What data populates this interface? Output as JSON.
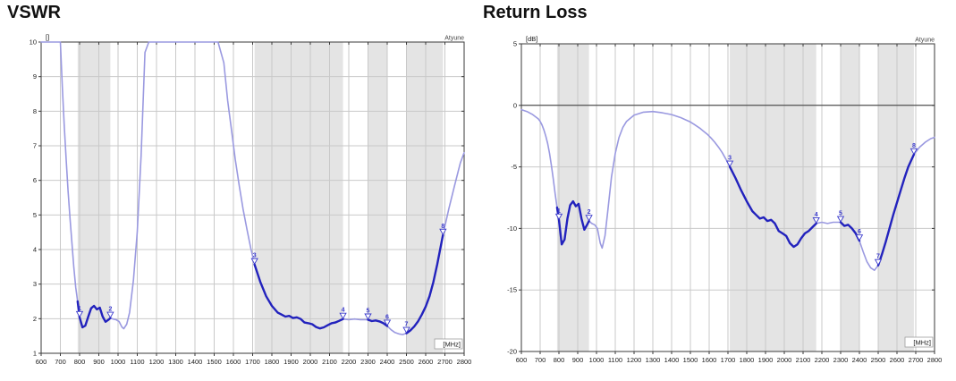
{
  "colors": {
    "curve_bold": "#2222bd",
    "curve_light": "#9a99e0",
    "band_fill": "#e4e4e4",
    "grid": "#c9c9c9",
    "frame": "#3a3a3a",
    "zero_line": "#333333",
    "marker": "#3a3acc",
    "text": "#1a1a1a",
    "watermark": "#444444"
  },
  "chart_data": [
    {
      "type": "line",
      "title": "VSWR",
      "unit_label": "[]",
      "watermark": "Atyune",
      "xlabel": "[MHz]",
      "x_range": [
        600,
        2800
      ],
      "x_tick_step": 100,
      "ylim": [
        1,
        10
      ],
      "y_tick_step": 1,
      "grid": true,
      "legend": "none",
      "bands_mhz": [
        [
          790,
          960
        ],
        [
          1710,
          2170
        ],
        [
          2300,
          2400
        ],
        [
          2500,
          2690
        ]
      ],
      "x": [
        600,
        630,
        660,
        690,
        700,
        710,
        720,
        730,
        740,
        750,
        760,
        770,
        780,
        790,
        800,
        815,
        830,
        845,
        860,
        875,
        890,
        905,
        920,
        935,
        950,
        960,
        975,
        990,
        1005,
        1020,
        1030,
        1045,
        1060,
        1080,
        1100,
        1120,
        1140,
        1160,
        1200,
        1250,
        1300,
        1350,
        1400,
        1450,
        1500,
        1520,
        1550,
        1570,
        1590,
        1610,
        1630,
        1650,
        1670,
        1690,
        1710,
        1740,
        1770,
        1800,
        1830,
        1850,
        1870,
        1890,
        1910,
        1930,
        1950,
        1970,
        1990,
        2010,
        2030,
        2050,
        2070,
        2090,
        2110,
        2130,
        2150,
        2170,
        2200,
        2230,
        2260,
        2300,
        2320,
        2340,
        2360,
        2380,
        2400,
        2420,
        2440,
        2460,
        2480,
        2500,
        2520,
        2540,
        2560,
        2580,
        2600,
        2620,
        2640,
        2660,
        2690,
        2720,
        2750,
        2780,
        2800
      ],
      "values": [
        11,
        11,
        11,
        11,
        10.2,
        8.7,
        7.6,
        6.6,
        5.7,
        4.9,
        4.2,
        3.5,
        2.9,
        2.5,
        2.04,
        1.75,
        1.8,
        2.06,
        2.3,
        2.37,
        2.27,
        2.32,
        2.06,
        1.91,
        1.97,
        2.02,
        1.99,
        1.97,
        1.92,
        1.76,
        1.71,
        1.84,
        2.18,
        3.11,
        4.52,
        6.72,
        9.7,
        11,
        11,
        11,
        11,
        11,
        11,
        11,
        11,
        11,
        9.4,
        8.3,
        7.45,
        6.6,
        5.85,
        5.17,
        4.59,
        4.04,
        3.57,
        3.06,
        2.65,
        2.37,
        2.18,
        2.12,
        2.06,
        2.08,
        2.02,
        2.04,
        1.99,
        1.89,
        1.87,
        1.84,
        1.76,
        1.72,
        1.75,
        1.81,
        1.87,
        1.89,
        1.94,
        1.99,
        1.97,
        1.99,
        1.97,
        1.97,
        1.93,
        1.95,
        1.92,
        1.87,
        1.79,
        1.68,
        1.6,
        1.56,
        1.54,
        1.58,
        1.66,
        1.77,
        1.92,
        2.12,
        2.35,
        2.65,
        3.06,
        3.57,
        4.42,
        5.17,
        5.85,
        6.5,
        6.8
      ],
      "markers": [
        {
          "label": "1",
          "mhz": 800,
          "value": 2.04
        },
        {
          "label": "2",
          "mhz": 960,
          "value": 2.02
        },
        {
          "label": "3",
          "mhz": 1710,
          "value": 3.57
        },
        {
          "label": "4",
          "mhz": 2170,
          "value": 1.99
        },
        {
          "label": "5",
          "mhz": 2300,
          "value": 1.97
        },
        {
          "label": "6",
          "mhz": 2400,
          "value": 1.79
        },
        {
          "label": "7",
          "mhz": 2500,
          "value": 1.58
        },
        {
          "label": "8",
          "mhz": 2690,
          "value": 4.42
        }
      ]
    },
    {
      "type": "line",
      "title": "Return Loss",
      "unit_label": "[dB]",
      "watermark": "Atyune",
      "xlabel": "[MHz]",
      "x_range": [
        600,
        2800
      ],
      "x_tick_step": 100,
      "ylim": [
        -20,
        5
      ],
      "y_tick_step": 5,
      "zero_line": 0,
      "grid": true,
      "legend": "none",
      "bands_mhz": [
        [
          790,
          960
        ],
        [
          1710,
          2170
        ],
        [
          2300,
          2400
        ],
        [
          2500,
          2690
        ]
      ],
      "x": [
        600,
        630,
        660,
        690,
        700,
        710,
        720,
        730,
        740,
        750,
        760,
        770,
        780,
        790,
        800,
        815,
        830,
        845,
        860,
        875,
        890,
        905,
        920,
        935,
        950,
        960,
        975,
        990,
        1005,
        1020,
        1030,
        1045,
        1060,
        1080,
        1100,
        1120,
        1140,
        1160,
        1200,
        1250,
        1300,
        1350,
        1400,
        1450,
        1500,
        1520,
        1550,
        1570,
        1590,
        1610,
        1630,
        1650,
        1670,
        1690,
        1710,
        1740,
        1770,
        1800,
        1830,
        1850,
        1870,
        1890,
        1910,
        1930,
        1950,
        1970,
        1990,
        2010,
        2030,
        2050,
        2070,
        2090,
        2110,
        2130,
        2150,
        2170,
        2200,
        2230,
        2260,
        2300,
        2320,
        2340,
        2360,
        2380,
        2400,
        2420,
        2440,
        2460,
        2480,
        2500,
        2520,
        2540,
        2560,
        2580,
        2600,
        2620,
        2640,
        2660,
        2690,
        2720,
        2750,
        2780,
        2800
      ],
      "values": [
        -0.35,
        -0.5,
        -0.75,
        -1.1,
        -1.3,
        -1.6,
        -2,
        -2.5,
        -3.1,
        -3.9,
        -4.9,
        -6,
        -7.2,
        -8.3,
        -9.3,
        -11.3,
        -10.9,
        -9.2,
        -8.1,
        -7.8,
        -8.2,
        -8,
        -9.2,
        -10.1,
        -9.7,
        -9.4,
        -9.6,
        -9.7,
        -10,
        -11.2,
        -11.6,
        -10.6,
        -8.6,
        -5.8,
        -3.9,
        -2.6,
        -1.8,
        -1.3,
        -0.8,
        -0.55,
        -0.5,
        -0.6,
        -0.75,
        -1,
        -1.35,
        -1.55,
        -1.85,
        -2.1,
        -2.35,
        -2.65,
        -3,
        -3.4,
        -3.85,
        -4.4,
        -5,
        -5.9,
        -6.9,
        -7.8,
        -8.6,
        -8.9,
        -9.2,
        -9.1,
        -9.4,
        -9.3,
        -9.6,
        -10.2,
        -10.4,
        -10.6,
        -11.2,
        -11.5,
        -11.3,
        -10.8,
        -10.4,
        -10.2,
        -9.9,
        -9.6,
        -9.5,
        -9.6,
        -9.5,
        -9.5,
        -9.8,
        -9.7,
        -10,
        -10.4,
        -11,
        -11.9,
        -12.7,
        -13.2,
        -13.4,
        -13,
        -12.1,
        -11.1,
        -10,
        -8.9,
        -7.9,
        -6.9,
        -5.9,
        -5,
        -4,
        -3.4,
        -3,
        -2.7,
        -2.6
      ],
      "markers": [
        {
          "label": "1",
          "mhz": 800,
          "value": -9.3
        },
        {
          "label": "2",
          "mhz": 960,
          "value": -9.4
        },
        {
          "label": "3",
          "mhz": 1710,
          "value": -5
        },
        {
          "label": "4",
          "mhz": 2170,
          "value": -9.6
        },
        {
          "label": "5",
          "mhz": 2300,
          "value": -9.5
        },
        {
          "label": "6",
          "mhz": 2400,
          "value": -11
        },
        {
          "label": "7",
          "mhz": 2500,
          "value": -13
        },
        {
          "label": "8",
          "mhz": 2690,
          "value": -4
        }
      ]
    }
  ]
}
